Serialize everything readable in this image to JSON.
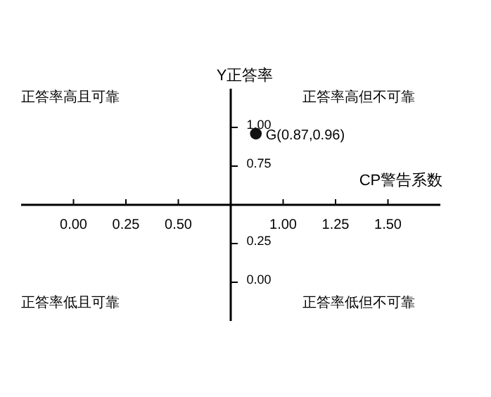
{
  "chart_data": {
    "type": "scatter",
    "xlabel": "CP警告系数",
    "ylabel": "Y正答率",
    "x": [
      0.87
    ],
    "values": [
      0.96
    ],
    "color": "#111111",
    "marker": "circle",
    "xlim": [
      -0.25,
      1.75
    ],
    "ylim": [
      -0.25,
      1.25
    ],
    "xticks": [
      {
        "value": 0,
        "label": "0.00"
      },
      0.25,
      {
        "value": 0.5,
        "label": "0.50"
      },
      {
        "value": 1,
        "label": "1.00"
      },
      1.25,
      {
        "value": 1.5,
        "label": "1.50"
      }
    ],
    "yticks": [
      {
        "value": 0,
        "label": "0.00"
      },
      0.25,
      0.75,
      {
        "value": 1,
        "label": "1.00"
      }
    ],
    "grid": false,
    "annotations": [
      "正答率高且可靠",
      "正答率高但不可靠",
      "正答率低且可靠",
      "正答率低但不可靠",
      {
        "text": "G(0.87,0.96)",
        "x": 0.87,
        "y": 0.96
      }
    ]
  }
}
